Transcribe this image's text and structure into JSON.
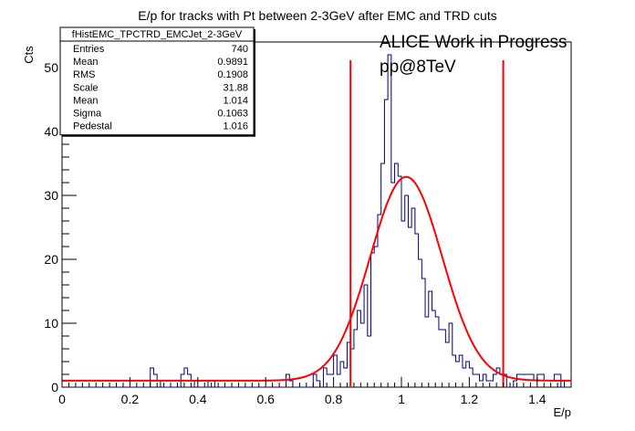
{
  "chart_data": {
    "type": "histogram",
    "title": "E/p for tracks with Pt between 2-3GeV after EMC and TRD cuts",
    "xlabel": "E/p",
    "ylabel": "Cts",
    "xlim": [
      0,
      1.5
    ],
    "ylim": [
      0,
      54
    ],
    "x_ticks": [
      "0",
      "0.2",
      "0.4",
      "0.6",
      "0.8",
      "1",
      "1.2",
      "1.4"
    ],
    "y_ticks": [
      "0",
      "10",
      "20",
      "30",
      "40",
      "50"
    ],
    "bin_width": 0.01,
    "counts": [
      0,
      0,
      0,
      0,
      0,
      0,
      0,
      0,
      0,
      0,
      0,
      0,
      0,
      0,
      0,
      0,
      0,
      0,
      0,
      0,
      0,
      0,
      0,
      0,
      0,
      0,
      3,
      2,
      1,
      0,
      0,
      0,
      0,
      0,
      0,
      2,
      3,
      2,
      1,
      0,
      0,
      0,
      0,
      1,
      1,
      0,
      0,
      0,
      0,
      0,
      0,
      0,
      0,
      0,
      0,
      0,
      0,
      0,
      0,
      0,
      0,
      0,
      0,
      0,
      0,
      0,
      2,
      1,
      0,
      0,
      0,
      0,
      0,
      0,
      2,
      1,
      0,
      3,
      2,
      2,
      5,
      2,
      4,
      3,
      7,
      6,
      9,
      12,
      10,
      16,
      8,
      21,
      22,
      27,
      35,
      45,
      52,
      32,
      35,
      33,
      26,
      30,
      25,
      28,
      24,
      20,
      17,
      11,
      15,
      12,
      11,
      9,
      9,
      7,
      10,
      5,
      4,
      5,
      3,
      4,
      3,
      2,
      2,
      1,
      2,
      1,
      1,
      2,
      3,
      2,
      2,
      0,
      0,
      1,
      2,
      2,
      2,
      2,
      2,
      1,
      2,
      2,
      1,
      1,
      1,
      2,
      2,
      0,
      1,
      1
    ],
    "fit": {
      "function": "gaussian+pedestal",
      "scale": 31.88,
      "mean": 1.014,
      "sigma": 0.1063,
      "pedestal": 1.016
    },
    "cut_lines": [
      0.85,
      1.3
    ],
    "colors": {
      "histogram": "#000080",
      "fit": "#ff0000",
      "cut_lines": "#ff0000"
    },
    "grid": false
  },
  "stats_box": {
    "name": "fHistEMC_TPCTRD_EMCJet_2-3GeV",
    "rows": [
      {
        "label": "Entries",
        "value": "740"
      },
      {
        "label": "Mean",
        "value": "0.9891"
      },
      {
        "label": "RMS",
        "value": "0.1908"
      },
      {
        "label": "Scale",
        "value": "31.88"
      },
      {
        "label": "Mean",
        "value": "1.014"
      },
      {
        "label": "Sigma",
        "value": "0.1063"
      },
      {
        "label": "Pedestal",
        "value": "1.016"
      }
    ]
  },
  "annotations": {
    "line1": "ALICE Work in Progress",
    "line2": "pp@8TeV"
  }
}
